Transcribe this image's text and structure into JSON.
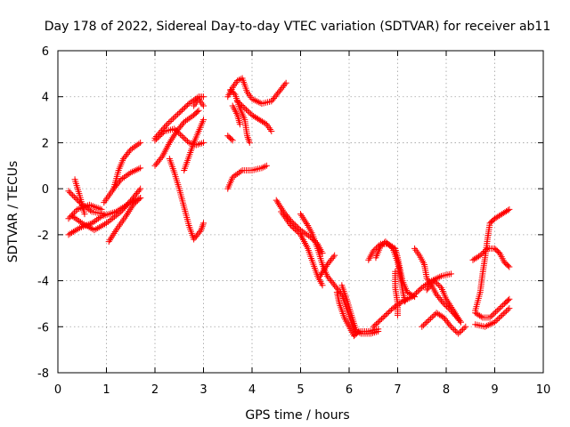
{
  "chart_data": {
    "type": "scatter",
    "title": "Day 178 of 2022, Sidereal Day-to-day VTEC variation (SDTVAR) for receiver ab11",
    "xlabel": "GPS time / hours",
    "ylabel": "SDTVAR / TECUs",
    "xlim": [
      0,
      10
    ],
    "ylim": [
      -8,
      6
    ],
    "xticks": [
      "0",
      "1",
      "2",
      "3",
      "4",
      "5",
      "6",
      "7",
      "8",
      "9",
      "10"
    ],
    "yticks": [
      "-8",
      "-6",
      "-4",
      "-2",
      "0",
      "2",
      "4",
      "6"
    ],
    "grid": true,
    "marker": "plus",
    "color": "#ff0000",
    "tracks": [
      [
        [
          0.22,
          -0.1
        ],
        [
          0.45,
          -0.6
        ],
        [
          0.7,
          -1.0
        ],
        [
          0.95,
          -1.1
        ]
      ],
      [
        [
          0.22,
          -1.3
        ],
        [
          0.4,
          -0.9
        ],
        [
          0.65,
          -0.7
        ],
        [
          0.9,
          -0.9
        ]
      ],
      [
        [
          0.22,
          -2.0
        ],
        [
          0.45,
          -1.7
        ],
        [
          0.7,
          -1.5
        ],
        [
          0.9,
          -1.2
        ],
        [
          1.2,
          -1.0
        ],
        [
          1.5,
          -0.6
        ],
        [
          1.7,
          -0.4
        ]
      ],
      [
        [
          0.3,
          -1.2
        ],
        [
          0.5,
          -1.5
        ],
        [
          0.75,
          -1.8
        ],
        [
          1.0,
          -1.5
        ],
        [
          1.3,
          -1.0
        ],
        [
          1.55,
          -0.4
        ],
        [
          1.7,
          0.0
        ]
      ],
      [
        [
          0.35,
          0.4
        ],
        [
          0.45,
          -0.3
        ],
        [
          0.55,
          -1.1
        ]
      ],
      [
        [
          1.05,
          -2.3
        ],
        [
          1.2,
          -1.8
        ],
        [
          1.4,
          -1.2
        ],
        [
          1.55,
          -0.7
        ],
        [
          1.7,
          -0.4
        ]
      ],
      [
        [
          0.95,
          -0.6
        ],
        [
          1.15,
          0.0
        ],
        [
          1.3,
          0.4
        ],
        [
          1.5,
          0.7
        ],
        [
          1.7,
          0.9
        ]
      ],
      [
        [
          1.15,
          0.0
        ],
        [
          1.25,
          0.8
        ],
        [
          1.35,
          1.3
        ],
        [
          1.5,
          1.7
        ],
        [
          1.7,
          2.0
        ]
      ],
      [
        [
          2.0,
          1.0
        ],
        [
          2.15,
          1.4
        ],
        [
          2.3,
          2.0
        ],
        [
          2.45,
          2.5
        ],
        [
          2.6,
          2.9
        ],
        [
          2.8,
          3.2
        ],
        [
          2.9,
          3.4
        ]
      ],
      [
        [
          2.0,
          2.1
        ],
        [
          2.2,
          2.5
        ],
        [
          2.4,
          2.6
        ],
        [
          2.55,
          2.3
        ],
        [
          2.7,
          2.0
        ],
        [
          2.85,
          1.9
        ],
        [
          3.0,
          2.0
        ]
      ],
      [
        [
          2.0,
          2.2
        ],
        [
          2.25,
          2.8
        ],
        [
          2.5,
          3.3
        ],
        [
          2.7,
          3.7
        ],
        [
          2.9,
          4.0
        ],
        [
          3.0,
          4.0
        ]
      ],
      [
        [
          2.3,
          1.3
        ],
        [
          2.4,
          0.7
        ],
        [
          2.5,
          0.0
        ],
        [
          2.6,
          -0.8
        ],
        [
          2.7,
          -1.6
        ],
        [
          2.8,
          -2.2
        ],
        [
          2.95,
          -1.8
        ],
        [
          3.0,
          -1.5
        ]
      ],
      [
        [
          2.6,
          0.8
        ],
        [
          2.7,
          1.4
        ],
        [
          2.8,
          2.0
        ],
        [
          2.9,
          2.5
        ],
        [
          3.0,
          3.0
        ]
      ],
      [
        [
          2.8,
          3.6
        ],
        [
          2.9,
          3.9
        ],
        [
          3.0,
          3.6
        ]
      ],
      [
        [
          3.5,
          4.0
        ],
        [
          3.6,
          4.4
        ],
        [
          3.7,
          4.7
        ],
        [
          3.8,
          4.8
        ],
        [
          3.9,
          4.2
        ],
        [
          4.0,
          3.9
        ],
        [
          4.2,
          3.7
        ],
        [
          4.4,
          3.8
        ],
        [
          4.55,
          4.2
        ],
        [
          4.7,
          4.6
        ]
      ],
      [
        [
          3.55,
          4.3
        ],
        [
          3.65,
          4.1
        ],
        [
          3.75,
          3.5
        ],
        [
          3.85,
          3.0
        ],
        [
          3.9,
          2.3
        ],
        [
          3.95,
          2.0
        ]
      ],
      [
        [
          3.7,
          3.8
        ],
        [
          3.85,
          3.5
        ],
        [
          4.0,
          3.2
        ],
        [
          4.15,
          3.0
        ],
        [
          4.3,
          2.8
        ],
        [
          4.4,
          2.5
        ]
      ],
      [
        [
          3.6,
          3.6
        ],
        [
          3.7,
          3.2
        ],
        [
          3.75,
          2.8
        ]
      ],
      [
        [
          3.5,
          2.3
        ],
        [
          3.6,
          2.1
        ]
      ],
      [
        [
          3.5,
          0.0
        ],
        [
          3.6,
          0.5
        ],
        [
          3.8,
          0.8
        ],
        [
          4.0,
          0.8
        ],
        [
          4.2,
          0.9
        ],
        [
          4.3,
          1.0
        ]
      ],
      [
        [
          4.5,
          -0.5
        ],
        [
          4.65,
          -1.0
        ],
        [
          4.8,
          -1.4
        ],
        [
          5.0,
          -1.8
        ],
        [
          5.2,
          -2.1
        ],
        [
          5.35,
          -2.4
        ],
        [
          5.45,
          -2.8
        ]
      ],
      [
        [
          4.6,
          -1.0
        ],
        [
          4.8,
          -1.6
        ],
        [
          5.0,
          -2.0
        ],
        [
          5.15,
          -2.6
        ],
        [
          5.25,
          -3.2
        ],
        [
          5.35,
          -3.8
        ],
        [
          5.45,
          -4.2
        ]
      ],
      [
        [
          5.0,
          -1.1
        ],
        [
          5.15,
          -1.6
        ],
        [
          5.25,
          -2.0
        ],
        [
          5.35,
          -2.6
        ],
        [
          5.45,
          -3.3
        ],
        [
          5.55,
          -3.8
        ],
        [
          5.7,
          -4.2
        ],
        [
          5.85,
          -4.6
        ],
        [
          5.95,
          -5.2
        ],
        [
          6.05,
          -5.8
        ],
        [
          6.15,
          -6.3
        ]
      ],
      [
        [
          5.4,
          -3.8
        ],
        [
          5.55,
          -3.3
        ],
        [
          5.7,
          -2.9
        ]
      ],
      [
        [
          5.75,
          -4.5
        ],
        [
          5.8,
          -5.0
        ],
        [
          5.9,
          -5.6
        ],
        [
          6.0,
          -6.0
        ],
        [
          6.1,
          -6.4
        ],
        [
          6.2,
          -6.2
        ],
        [
          6.4,
          -6.2
        ],
        [
          6.6,
          -6.1
        ]
      ],
      [
        [
          5.85,
          -4.2
        ],
        [
          5.95,
          -4.8
        ],
        [
          6.05,
          -5.5
        ],
        [
          6.15,
          -6.2
        ],
        [
          6.25,
          -6.3
        ],
        [
          6.45,
          -6.3
        ],
        [
          6.6,
          -6.2
        ]
      ],
      [
        [
          6.5,
          -6.0
        ],
        [
          6.7,
          -5.6
        ],
        [
          6.9,
          -5.2
        ],
        [
          7.1,
          -4.9
        ],
        [
          7.3,
          -4.7
        ],
        [
          7.5,
          -4.3
        ],
        [
          7.7,
          -4.0
        ],
        [
          7.9,
          -3.8
        ],
        [
          8.1,
          -3.7
        ]
      ],
      [
        [
          6.4,
          -3.1
        ],
        [
          6.5,
          -2.7
        ],
        [
          6.65,
          -2.4
        ],
        [
          6.8,
          -2.4
        ],
        [
          6.95,
          -2.6
        ],
        [
          7.0,
          -3.0
        ],
        [
          7.05,
          -3.5
        ],
        [
          7.1,
          -4.0
        ],
        [
          7.2,
          -4.5
        ],
        [
          7.35,
          -4.7
        ]
      ],
      [
        [
          6.55,
          -3.0
        ],
        [
          6.65,
          -2.5
        ],
        [
          6.75,
          -2.3
        ],
        [
          6.9,
          -2.6
        ],
        [
          7.0,
          -3.2
        ],
        [
          7.05,
          -3.8
        ],
        [
          7.1,
          -4.4
        ],
        [
          7.15,
          -4.9
        ]
      ],
      [
        [
          6.95,
          -3.6
        ],
        [
          6.95,
          -4.3
        ],
        [
          7.0,
          -5.0
        ],
        [
          7.0,
          -5.5
        ]
      ],
      [
        [
          7.35,
          -2.6
        ],
        [
          7.45,
          -2.9
        ],
        [
          7.55,
          -3.3
        ],
        [
          7.6,
          -3.9
        ],
        [
          7.7,
          -4.2
        ],
        [
          7.8,
          -4.6
        ],
        [
          7.95,
          -5.0
        ],
        [
          8.1,
          -5.3
        ],
        [
          8.3,
          -5.8
        ]
      ],
      [
        [
          7.5,
          -6.0
        ],
        [
          7.65,
          -5.7
        ],
        [
          7.8,
          -5.4
        ],
        [
          7.95,
          -5.6
        ],
        [
          8.1,
          -6.0
        ],
        [
          8.25,
          -6.3
        ],
        [
          8.4,
          -6.0
        ]
      ],
      [
        [
          7.6,
          -4.4
        ],
        [
          7.75,
          -4.0
        ],
        [
          7.9,
          -4.3
        ],
        [
          8.0,
          -4.8
        ],
        [
          8.15,
          -5.3
        ],
        [
          8.3,
          -5.8
        ]
      ],
      [
        [
          8.6,
          -5.9
        ],
        [
          8.8,
          -6.0
        ],
        [
          9.0,
          -5.8
        ],
        [
          9.15,
          -5.5
        ],
        [
          9.3,
          -5.2
        ]
      ],
      [
        [
          8.6,
          -5.4
        ],
        [
          8.75,
          -5.6
        ],
        [
          8.9,
          -5.6
        ],
        [
          9.05,
          -5.3
        ],
        [
          9.2,
          -5.0
        ],
        [
          9.3,
          -4.8
        ]
      ],
      [
        [
          8.55,
          -3.1
        ],
        [
          8.7,
          -2.9
        ],
        [
          8.85,
          -2.6
        ],
        [
          9.0,
          -2.6
        ],
        [
          9.1,
          -2.8
        ],
        [
          9.2,
          -3.2
        ],
        [
          9.3,
          -3.4
        ]
      ],
      [
        [
          8.6,
          -5.3
        ],
        [
          8.7,
          -4.5
        ],
        [
          8.75,
          -3.7
        ],
        [
          8.8,
          -3.0
        ],
        [
          8.85,
          -2.2
        ],
        [
          8.9,
          -1.5
        ],
        [
          9.0,
          -1.3
        ],
        [
          9.15,
          -1.1
        ],
        [
          9.3,
          -0.9
        ]
      ]
    ]
  }
}
